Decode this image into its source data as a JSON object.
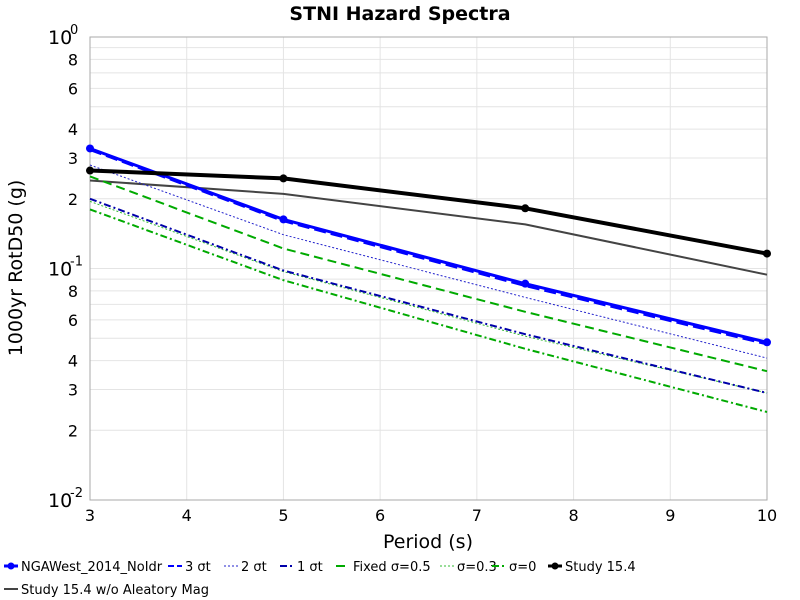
{
  "chart_data": {
    "type": "line",
    "title": "STNI Hazard Spectra",
    "xlabel": "Period (s)",
    "ylabel": "1000yr RotD50 (g)",
    "xlim": [
      3,
      10
    ],
    "ylim": [
      0.01,
      1
    ],
    "y_scale": "log",
    "grid": true,
    "legend_position": "bottom",
    "x_tick_labels": [
      "3",
      "4",
      "5",
      "6",
      "7",
      "8",
      "9",
      "10"
    ],
    "y_major_labels": [
      {
        "value": 1,
        "base": "10",
        "exp": "0"
      },
      {
        "value": 0.1,
        "base": "10",
        "exp": "-1"
      },
      {
        "value": 0.01,
        "base": "10",
        "exp": "-2"
      }
    ],
    "y_minor_labels": [
      {
        "value": 0.8,
        "label": "8"
      },
      {
        "value": 0.6,
        "label": "6"
      },
      {
        "value": 0.4,
        "label": "4"
      },
      {
        "value": 0.3,
        "label": "3"
      },
      {
        "value": 0.2,
        "label": "2"
      },
      {
        "value": 0.08,
        "label": "8"
      },
      {
        "value": 0.06,
        "label": "6"
      },
      {
        "value": 0.04,
        "label": "4"
      },
      {
        "value": 0.03,
        "label": "3"
      },
      {
        "value": 0.02,
        "label": "2"
      }
    ],
    "series": [
      {
        "name": "NGAWest_2014_NoIdr",
        "color": "#0000ff",
        "dash": "solid",
        "width": 3,
        "markers": true,
        "x": [
          3,
          5,
          7.5,
          10
        ],
        "y": [
          0.33,
          0.163,
          0.086,
          0.048
        ]
      },
      {
        "name": "3 σt",
        "color": "#0000ff",
        "dash": "long-dash",
        "width": 2,
        "markers": false,
        "x": [
          3,
          5,
          7.5,
          10
        ],
        "y": [
          0.325,
          0.16,
          0.084,
          0.047
        ]
      },
      {
        "name": "2 σt",
        "color": "#2222cc",
        "dash": "dotted",
        "width": 1,
        "markers": false,
        "x": [
          3,
          5,
          7.5,
          10
        ],
        "y": [
          0.28,
          0.14,
          0.075,
          0.041
        ]
      },
      {
        "name": "1 σt",
        "color": "#0000aa",
        "dash": "dash-dot",
        "width": 2,
        "markers": false,
        "x": [
          3,
          5,
          7.5,
          10
        ],
        "y": [
          0.2,
          0.098,
          0.052,
          0.029
        ]
      },
      {
        "name": "Fixed σ=0.5",
        "color": "#00aa00",
        "dash": "dashed",
        "width": 2,
        "markers": false,
        "x": [
          3,
          5,
          7.5,
          10
        ],
        "y": [
          0.25,
          0.122,
          0.065,
          0.036
        ]
      },
      {
        "name": "σ=0.3",
        "color": "#33bb33",
        "dash": "dotted",
        "width": 1,
        "markers": false,
        "x": [
          3,
          5,
          7.5,
          10
        ],
        "y": [
          0.195,
          0.097,
          0.051,
          0.029
        ]
      },
      {
        "name": "σ=0",
        "color": "#00aa00",
        "dash": "dash-dot",
        "width": 2,
        "markers": false,
        "x": [
          3,
          5,
          7.5,
          10
        ],
        "y": [
          0.18,
          0.089,
          0.045,
          0.024
        ]
      },
      {
        "name": "Study 15.4",
        "color": "#000000",
        "dash": "solid",
        "width": 4,
        "markers": true,
        "x": [
          3,
          5,
          7.5,
          10
        ],
        "y": [
          0.265,
          0.245,
          0.182,
          0.116
        ]
      },
      {
        "name": "Study 15.4 w/o Aleatory Mag",
        "color": "#444444",
        "dash": "solid",
        "width": 2,
        "markers": false,
        "x": [
          3,
          5,
          7.5,
          10
        ],
        "y": [
          0.24,
          0.21,
          0.155,
          0.094
        ]
      }
    ]
  }
}
